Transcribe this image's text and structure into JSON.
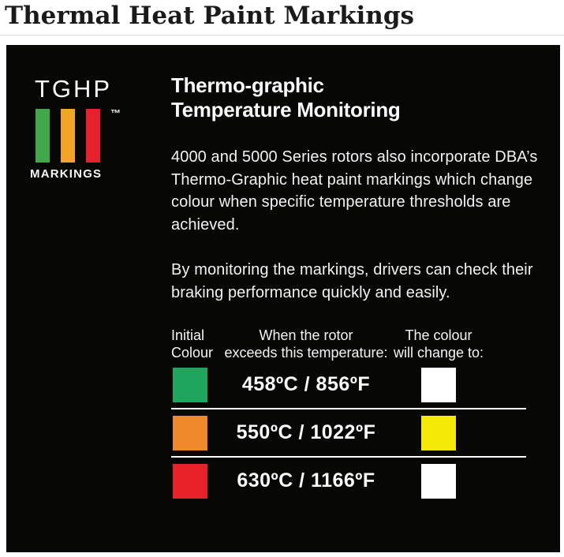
{
  "page": {
    "title": "Thermal Heat Paint Markings"
  },
  "panel": {
    "logo": {
      "name": "TGHP",
      "trademark": "™",
      "caption": "MARKINGS",
      "bar_colors": [
        "#42a94a",
        "#f2a424",
        "#e6202d"
      ]
    },
    "heading": "Thermo-graphic\nTemperature Monitoring",
    "paragraph1": "4000 and 5000 Series rotors also incorporate DBA’s Thermo-Graphic heat paint markings which change colour when specific temperature thresholds are achieved.",
    "paragraph2": "By monitoring the markings, drivers can check their braking performance quickly and easily.",
    "table": {
      "headers": [
        "Initial\nColour",
        "When the rotor\nexceeds this temperature:",
        "The colour\nwill change to:"
      ],
      "rows": [
        {
          "initial_color": "#1fa55c",
          "temperature": "458ºC / 856ºF",
          "change_color": "#ffffff"
        },
        {
          "initial_color": "#ee8a2b",
          "temperature": "550ºC / 1022ºF",
          "change_color": "#f3e806"
        },
        {
          "initial_color": "#e92129",
          "temperature": "630ºC / 1166ºF",
          "change_color": "#ffffff"
        }
      ]
    }
  },
  "colors": {
    "panel_background": "#070706",
    "panel_text": "#f2f2f2",
    "title_text": "#1a1a1a",
    "row_divider": "#ffffff"
  }
}
